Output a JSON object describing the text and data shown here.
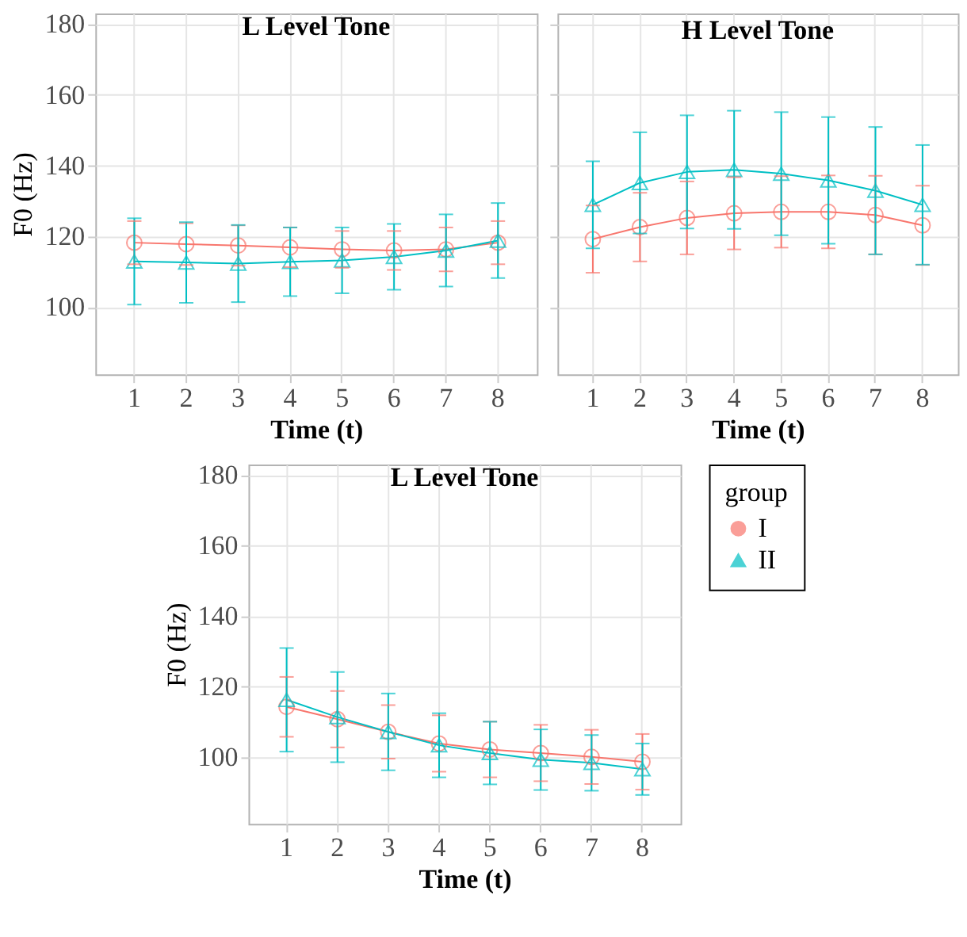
{
  "chart_data": [
    {
      "type": "line",
      "title": "L Level Tone",
      "xlabel": "Time (t)",
      "ylabel": "F0 (Hz)",
      "categories": [
        "1",
        "2",
        "3",
        "4",
        "5",
        "6",
        "7",
        "8"
      ],
      "ylim": [
        81,
        183
      ],
      "yticks": [
        100,
        120,
        140,
        160,
        180
      ],
      "grid": true,
      "legend": false,
      "series": [
        {
          "color": "#f8766d",
          "marker": "circle",
          "values": [
            118.2,
            117.8,
            117.4,
            116.9,
            116.3,
            116.0,
            116.3,
            118.2
          ],
          "errors": [
            6.1,
            5.9,
            5.7,
            5.6,
            5.2,
            5.5,
            6.2,
            6.1
          ]
        },
        {
          "color": "#00bfc4",
          "marker": "triangle",
          "values": [
            112.9,
            112.6,
            112.3,
            112.8,
            113.2,
            114.2,
            116.0,
            118.8
          ],
          "errors": [
            12.2,
            11.4,
            10.9,
            9.7,
            9.3,
            9.3,
            10.2,
            10.6
          ]
        }
      ]
    },
    {
      "type": "line",
      "title": "H Level Tone",
      "xlabel": "Time (t)",
      "categories": [
        "1",
        "2",
        "3",
        "4",
        "5",
        "6",
        "7",
        "8"
      ],
      "ylim": [
        81,
        183
      ],
      "yticks": [
        100,
        120,
        140,
        160,
        180
      ],
      "tick_labels": "x",
      "grid": true,
      "legend": false,
      "series": [
        {
          "color": "#f8766d",
          "marker": "circle",
          "values": [
            119.2,
            122.6,
            125.2,
            126.5,
            126.9,
            126.9,
            126.0,
            123.1
          ],
          "errors": [
            9.5,
            9.7,
            10.3,
            10.2,
            10.1,
            10.3,
            11.1,
            11.2
          ]
        },
        {
          "color": "#00bfc4",
          "marker": "triangle",
          "values": [
            128.9,
            135.1,
            138.2,
            138.8,
            137.7,
            135.8,
            132.9,
            128.9
          ],
          "errors": [
            12.3,
            14.3,
            16.0,
            16.7,
            17.4,
            17.9,
            18.0,
            16.9
          ]
        }
      ]
    },
    {
      "type": "line",
      "title": "L Level Tone",
      "xlabel": "Time (t)",
      "ylabel": "F0 (Hz)",
      "legend_title": "group",
      "categories": [
        "1",
        "2",
        "3",
        "4",
        "5",
        "6",
        "7",
        "8"
      ],
      "ylim": [
        81,
        183
      ],
      "yticks": [
        100,
        120,
        140,
        160,
        180
      ],
      "grid": true,
      "legend": "right",
      "series": [
        {
          "name": "I",
          "color": "#f8766d",
          "marker": "circle",
          "values": [
            114.2,
            110.7,
            107.1,
            103.8,
            102.1,
            101.1,
            100.0,
            98.6
          ],
          "errors": [
            8.5,
            8.0,
            7.6,
            8.0,
            7.9,
            8.0,
            7.7,
            7.9
          ]
        },
        {
          "name": "II",
          "color": "#00bfc4",
          "marker": "triangle",
          "values": [
            116.2,
            111.3,
            107.1,
            103.3,
            101.1,
            99.2,
            98.3,
            96.5
          ],
          "errors": [
            14.7,
            12.8,
            10.9,
            9.1,
            8.9,
            8.6,
            7.9,
            7.3
          ]
        }
      ]
    }
  ]
}
